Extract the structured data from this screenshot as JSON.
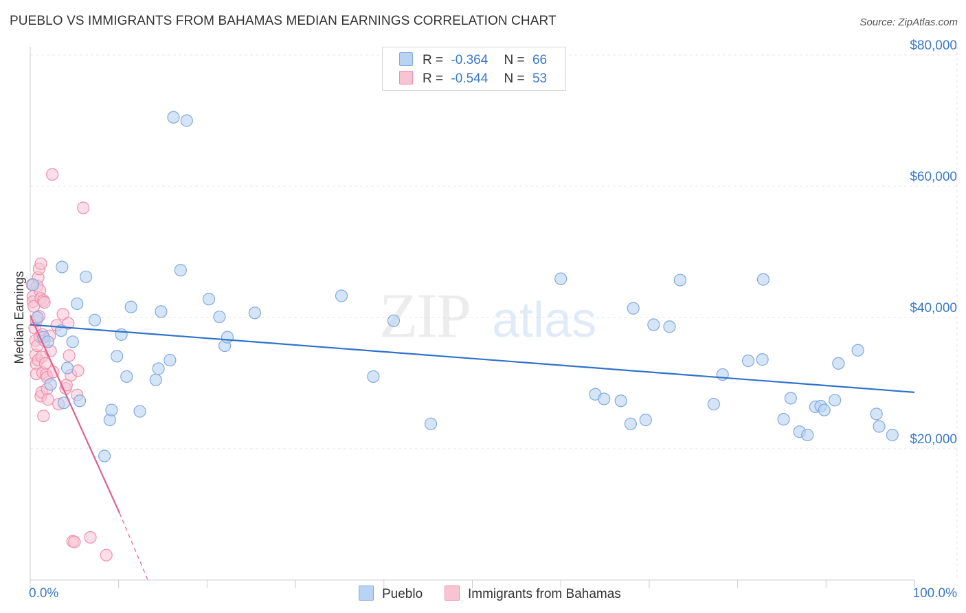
{
  "header": {
    "title": "PUEBLO VS IMMIGRANTS FROM BAHAMAS MEDIAN EARNINGS CORRELATION CHART",
    "source": "Source: ZipAtlas.com"
  },
  "legend": {
    "pueblo": {
      "r_label": "R =",
      "r_value": "-0.364",
      "n_label": "N =",
      "n_value": "66"
    },
    "bahamas": {
      "r_label": "R =",
      "r_value": "-0.544",
      "n_label": "N =",
      "n_value": "53"
    }
  },
  "bottom_legend": {
    "pueblo": "Pueblo",
    "bahamas": "Immigrants from Bahamas"
  },
  "watermark": {
    "zip": "ZIP",
    "atlas": "atlas"
  },
  "colors": {
    "pueblo_fill": "#b9d3f2",
    "pueblo_stroke": "#7eaae0",
    "pueblo_line": "#2f72cc",
    "bahamas_fill": "#f8c3d3",
    "bahamas_stroke": "#ee8fab",
    "bahamas_line": "#e0608f",
    "axis_label": "#3a78c9",
    "grid": "#e6e6e6"
  },
  "chart_data": {
    "type": "scatter",
    "title": "PUEBLO VS IMMIGRANTS FROM BAHAMAS MEDIAN EARNINGS CORRELATION CHART",
    "xlabel": "",
    "ylabel": "Median Earnings",
    "xlim": [
      0,
      100
    ],
    "ylim": [
      0,
      80000
    ],
    "x_tick_labels": [
      "0.0%",
      "100.0%"
    ],
    "y_ticks": [
      20000,
      40000,
      60000,
      80000
    ],
    "y_tick_labels": [
      "$20,000",
      "$40,000",
      "$60,000",
      "$80,000"
    ],
    "grid": true,
    "series": [
      {
        "name": "Pueblo",
        "r": -0.364,
        "n": 66,
        "trend": {
          "x": [
            0,
            100
          ],
          "y": [
            38900,
            28600
          ]
        },
        "points": [
          [
            0.3,
            45000
          ],
          [
            0.8,
            40000
          ],
          [
            1.5,
            37000
          ],
          [
            2.0,
            36300
          ],
          [
            2.3,
            29800
          ],
          [
            3.5,
            38000
          ],
          [
            3.6,
            47700
          ],
          [
            3.8,
            27000
          ],
          [
            4.2,
            32300
          ],
          [
            4.8,
            36300
          ],
          [
            5.3,
            42100
          ],
          [
            5.6,
            27300
          ],
          [
            6.3,
            46200
          ],
          [
            7.3,
            39600
          ],
          [
            8.4,
            18900
          ],
          [
            9.0,
            24400
          ],
          [
            9.2,
            25900
          ],
          [
            9.8,
            34100
          ],
          [
            10.3,
            37400
          ],
          [
            10.9,
            31000
          ],
          [
            11.4,
            41600
          ],
          [
            12.4,
            25700
          ],
          [
            14.2,
            30500
          ],
          [
            14.5,
            32200
          ],
          [
            14.8,
            40900
          ],
          [
            15.8,
            33500
          ],
          [
            16.2,
            70500
          ],
          [
            17.0,
            47200
          ],
          [
            17.7,
            70000
          ],
          [
            20.2,
            42800
          ],
          [
            21.4,
            40100
          ],
          [
            22.0,
            35700
          ],
          [
            22.3,
            37000
          ],
          [
            25.4,
            40700
          ],
          [
            35.2,
            43300
          ],
          [
            38.8,
            31000
          ],
          [
            41.1,
            39500
          ],
          [
            45.3,
            23800
          ],
          [
            60.0,
            45900
          ],
          [
            63.9,
            28300
          ],
          [
            64.9,
            27600
          ],
          [
            66.8,
            27300
          ],
          [
            67.9,
            23800
          ],
          [
            68.2,
            41400
          ],
          [
            69.6,
            24400
          ],
          [
            70.5,
            38900
          ],
          [
            72.3,
            38600
          ],
          [
            73.5,
            45700
          ],
          [
            77.3,
            26800
          ],
          [
            78.3,
            31300
          ],
          [
            81.2,
            33400
          ],
          [
            82.8,
            33600
          ],
          [
            82.9,
            45800
          ],
          [
            85.2,
            24500
          ],
          [
            86.0,
            27700
          ],
          [
            87.0,
            22600
          ],
          [
            87.9,
            22100
          ],
          [
            88.8,
            26400
          ],
          [
            89.4,
            26500
          ],
          [
            89.8,
            25900
          ],
          [
            91.0,
            27400
          ],
          [
            91.4,
            33000
          ],
          [
            93.6,
            35000
          ],
          [
            95.7,
            25300
          ],
          [
            96.0,
            23400
          ],
          [
            97.5,
            22100
          ]
        ]
      },
      {
        "name": "Immigrants from Bahamas",
        "r": -0.544,
        "n": 53,
        "trend": {
          "x": [
            0,
            10.1
          ],
          "y": [
            40300,
            10200
          ]
        },
        "trend_dashed": {
          "x": [
            10.1,
            13.3
          ],
          "y": [
            10200,
            0
          ]
        },
        "points": [
          [
            0.2,
            45000
          ],
          [
            0.3,
            43200
          ],
          [
            0.3,
            42400
          ],
          [
            0.4,
            41700
          ],
          [
            0.5,
            38400
          ],
          [
            0.6,
            36500
          ],
          [
            0.6,
            34300
          ],
          [
            0.7,
            32900
          ],
          [
            0.7,
            31400
          ],
          [
            0.7,
            39500
          ],
          [
            0.8,
            44800
          ],
          [
            0.8,
            35700
          ],
          [
            0.9,
            46100
          ],
          [
            0.9,
            33500
          ],
          [
            1.0,
            47400
          ],
          [
            1.0,
            40200
          ],
          [
            1.1,
            37100
          ],
          [
            1.1,
            44100
          ],
          [
            1.2,
            48200
          ],
          [
            1.2,
            42900
          ],
          [
            1.2,
            28000
          ],
          [
            1.3,
            28600
          ],
          [
            1.3,
            34000
          ],
          [
            1.4,
            37400
          ],
          [
            1.4,
            31600
          ],
          [
            1.5,
            42600
          ],
          [
            1.5,
            25000
          ],
          [
            1.6,
            42300
          ],
          [
            1.6,
            36500
          ],
          [
            1.7,
            33000
          ],
          [
            1.8,
            31300
          ],
          [
            1.9,
            30900
          ],
          [
            1.9,
            29100
          ],
          [
            2.0,
            27500
          ],
          [
            2.2,
            37200
          ],
          [
            2.3,
            34900
          ],
          [
            2.5,
            61800
          ],
          [
            2.6,
            31700
          ],
          [
            3.0,
            38800
          ],
          [
            3.2,
            26800
          ],
          [
            3.7,
            40500
          ],
          [
            4.0,
            29200
          ],
          [
            4.1,
            29700
          ],
          [
            4.3,
            39100
          ],
          [
            4.4,
            34200
          ],
          [
            4.6,
            31200
          ],
          [
            4.8,
            5900
          ],
          [
            5.0,
            5800
          ],
          [
            5.4,
            31900
          ],
          [
            6.0,
            56700
          ],
          [
            6.8,
            6500
          ],
          [
            8.6,
            3800
          ],
          [
            5.3,
            28200
          ]
        ]
      }
    ]
  }
}
